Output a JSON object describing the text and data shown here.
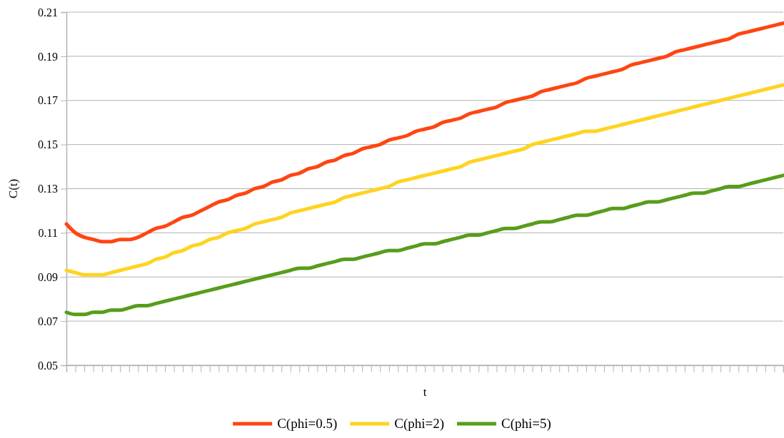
{
  "chart_data": {
    "type": "line",
    "xlabel": "t",
    "ylabel": "C(t)",
    "categories": [
      null,
      null,
      null,
      null,
      null,
      null,
      null,
      null,
      null,
      null,
      null,
      null,
      null,
      null,
      null,
      null,
      null,
      null,
      null,
      null,
      null,
      null,
      null,
      null,
      null,
      null,
      null,
      null,
      null,
      null,
      null,
      null,
      null,
      null,
      null,
      null,
      null,
      null,
      null,
      null,
      null,
      null,
      null,
      null,
      null,
      null,
      null,
      null,
      null,
      null,
      null,
      null,
      null,
      null,
      null,
      null,
      null,
      null,
      null,
      null,
      null,
      null,
      null,
      null,
      null,
      null,
      null,
      null,
      null,
      null,
      null,
      null,
      null,
      null,
      null,
      null,
      null,
      null,
      null,
      null,
      null
    ],
    "ylim": [
      0.05,
      0.21
    ],
    "yticks": [
      {
        "value": 0.05,
        "label": "0.05"
      },
      {
        "value": 0.07,
        "label": "0.07"
      },
      {
        "value": 0.09,
        "label": "0.09"
      },
      {
        "value": 0.11,
        "label": "0.11"
      },
      {
        "value": 0.13,
        "label": "0.13"
      },
      {
        "value": 0.15,
        "label": "0.15"
      },
      {
        "value": 0.17,
        "label": "0.17"
      },
      {
        "value": 0.19,
        "label": "0.19"
      },
      {
        "value": 0.21,
        "label": "0.21"
      }
    ],
    "grid": "y",
    "legend": "bottom",
    "marker": "none",
    "line_style": "solid",
    "series": [
      {
        "name": "C(phi=0.5)",
        "color": "#ff4512",
        "values": [
          0.114,
          0.11,
          0.108,
          0.107,
          0.106,
          0.106,
          0.107,
          0.107,
          0.108,
          0.11,
          0.112,
          0.113,
          0.115,
          0.117,
          0.118,
          0.12,
          0.122,
          0.124,
          0.125,
          0.127,
          0.128,
          0.13,
          0.131,
          0.133,
          0.134,
          0.136,
          0.137,
          0.139,
          0.14,
          0.142,
          0.143,
          0.145,
          0.146,
          0.148,
          0.149,
          0.15,
          0.152,
          0.153,
          0.154,
          0.156,
          0.157,
          0.158,
          0.16,
          0.161,
          0.162,
          0.164,
          0.165,
          0.166,
          0.167,
          0.169,
          0.17,
          0.171,
          0.172,
          0.174,
          0.175,
          0.176,
          0.177,
          0.178,
          0.18,
          0.181,
          0.182,
          0.183,
          0.184,
          0.186,
          0.187,
          0.188,
          0.189,
          0.19,
          0.192,
          0.193,
          0.194,
          0.195,
          0.196,
          0.197,
          0.198,
          0.2,
          0.201,
          0.202,
          0.203,
          0.204,
          0.205
        ]
      },
      {
        "name": "C(phi=2)",
        "color": "#ffd320",
        "values": [
          0.093,
          0.092,
          0.091,
          0.091,
          0.091,
          0.092,
          0.093,
          0.094,
          0.095,
          0.096,
          0.098,
          0.099,
          0.101,
          0.102,
          0.104,
          0.105,
          0.107,
          0.108,
          0.11,
          0.111,
          0.112,
          0.114,
          0.115,
          0.116,
          0.117,
          0.119,
          0.12,
          0.121,
          0.122,
          0.123,
          0.124,
          0.126,
          0.127,
          0.128,
          0.129,
          0.13,
          0.131,
          0.133,
          0.134,
          0.135,
          0.136,
          0.137,
          0.138,
          0.139,
          0.14,
          0.142,
          0.143,
          0.144,
          0.145,
          0.146,
          0.147,
          0.148,
          0.15,
          0.151,
          0.152,
          0.153,
          0.154,
          0.155,
          0.156,
          0.156,
          0.157,
          0.158,
          0.159,
          0.16,
          0.161,
          0.162,
          0.163,
          0.164,
          0.165,
          0.166,
          0.167,
          0.168,
          0.169,
          0.17,
          0.171,
          0.172,
          0.173,
          0.174,
          0.175,
          0.176,
          0.177
        ]
      },
      {
        "name": "C(phi=5)",
        "color": "#579d1c",
        "values": [
          0.074,
          0.073,
          0.073,
          0.074,
          0.074,
          0.075,
          0.075,
          0.076,
          0.077,
          0.077,
          0.078,
          0.079,
          0.08,
          0.081,
          0.082,
          0.083,
          0.084,
          0.085,
          0.086,
          0.087,
          0.088,
          0.089,
          0.09,
          0.091,
          0.092,
          0.093,
          0.094,
          0.094,
          0.095,
          0.096,
          0.097,
          0.098,
          0.098,
          0.099,
          0.1,
          0.101,
          0.102,
          0.102,
          0.103,
          0.104,
          0.105,
          0.105,
          0.106,
          0.107,
          0.108,
          0.109,
          0.109,
          0.11,
          0.111,
          0.112,
          0.112,
          0.113,
          0.114,
          0.115,
          0.115,
          0.116,
          0.117,
          0.118,
          0.118,
          0.119,
          0.12,
          0.121,
          0.121,
          0.122,
          0.123,
          0.124,
          0.124,
          0.125,
          0.126,
          0.127,
          0.128,
          0.128,
          0.129,
          0.13,
          0.131,
          0.131,
          0.132,
          0.133,
          0.134,
          0.135,
          0.136
        ]
      }
    ]
  }
}
